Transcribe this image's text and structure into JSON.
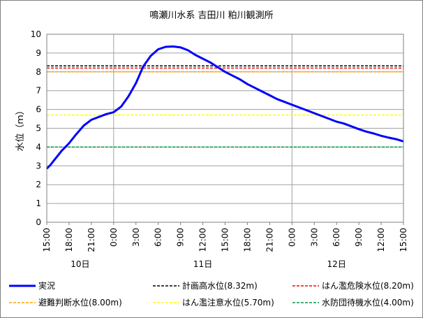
{
  "chart_data": {
    "type": "line",
    "title": "鳴瀬川水系  吉田川  粕川観測所",
    "ylabel": "水位（ｍ）",
    "xlabel": "",
    "ylim": [
      0,
      10
    ],
    "yticks": [
      0,
      1,
      2,
      3,
      4,
      5,
      6,
      7,
      8,
      9,
      10
    ],
    "xlim": [
      0,
      48
    ],
    "x_unit": "hours from 10日 15:00",
    "xtick_labels": [
      "15:00",
      "18:00",
      "21:00",
      "0:00",
      "3:00",
      "6:00",
      "9:00",
      "12:00",
      "15:00",
      "18:00",
      "21:00",
      "0:00",
      "3:00",
      "6:00",
      "9:00",
      "12:00",
      "15:00"
    ],
    "day_labels": [
      {
        "label": "10日",
        "x": 4.5
      },
      {
        "label": "11日",
        "x": 21
      },
      {
        "label": "12日",
        "x": 39
      }
    ],
    "day_dividers": [
      9,
      33
    ],
    "grid": true,
    "series": [
      {
        "name": "実況",
        "color": "#0000ff",
        "style": "solid",
        "x": [
          0,
          0.5,
          1,
          1.5,
          2,
          3,
          4,
          5,
          6,
          7,
          8,
          9,
          10,
          11,
          12,
          13,
          14,
          15,
          16,
          17,
          18,
          19,
          20,
          21,
          22,
          23,
          24,
          25,
          26,
          27,
          28,
          29,
          30,
          31,
          32,
          33,
          34,
          35,
          36,
          37,
          38,
          39,
          40,
          41,
          42,
          43,
          44,
          45,
          46,
          47,
          48
        ],
        "y": [
          2.85,
          3.05,
          3.3,
          3.55,
          3.8,
          4.2,
          4.7,
          5.15,
          5.45,
          5.6,
          5.75,
          5.85,
          6.15,
          6.7,
          7.4,
          8.3,
          8.85,
          9.2,
          9.33,
          9.35,
          9.3,
          9.15,
          8.9,
          8.7,
          8.5,
          8.25,
          8.0,
          7.8,
          7.6,
          7.35,
          7.15,
          6.95,
          6.75,
          6.55,
          6.4,
          6.25,
          6.1,
          5.95,
          5.8,
          5.65,
          5.5,
          5.35,
          5.25,
          5.1,
          4.95,
          4.82,
          4.72,
          4.6,
          4.5,
          4.42,
          4.3
        ]
      }
    ],
    "thresholds": [
      {
        "name": "計画高水位(8.32m)",
        "value": 8.32,
        "color": "#000000"
      },
      {
        "name": "はん濫危険水位(8.20m)",
        "value": 8.2,
        "color": "#ff0000"
      },
      {
        "name": "避難判断水位(8.00m)",
        "value": 8.0,
        "color": "#ffa500"
      },
      {
        "name": "はん濫注意水位(5.70m)",
        "value": 5.7,
        "color": "#ffff00"
      },
      {
        "name": "水防団待機水位(4.00m)",
        "value": 4.0,
        "color": "#009a44"
      }
    ],
    "legend": {
      "placement": "bottom"
    }
  }
}
